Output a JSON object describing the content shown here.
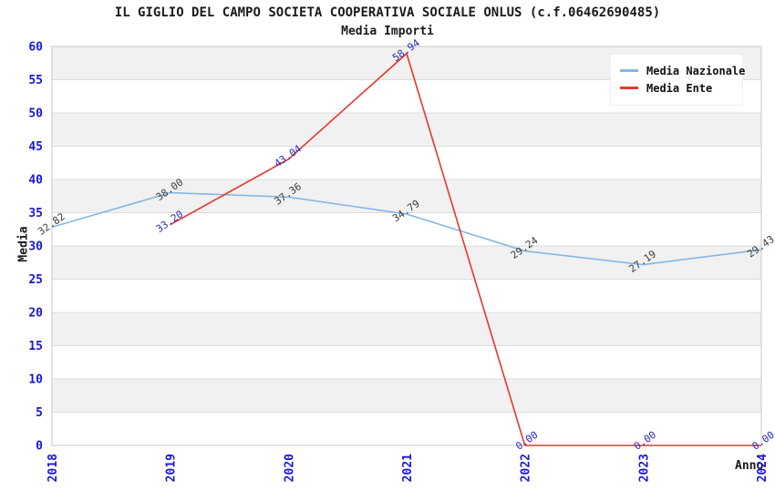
{
  "header": {
    "title": "IL GIGLIO DEL CAMPO SOCIETA COOPERATIVA SOCIALE ONLUS (c.f.06462690485)",
    "subtitle": "Media Importi"
  },
  "chart_data": {
    "type": "line",
    "title": "IL GIGLIO DEL CAMPO SOCIETA COOPERATIVA SOCIALE ONLUS (c.f.06462690485)",
    "subtitle": "Media Importi",
    "x": [
      2018,
      2019,
      2020,
      2021,
      2022,
      2023,
      2024
    ],
    "series": [
      {
        "name": "Media Nazionale",
        "color": "#85b7e5",
        "label_color": "#3d3d3d",
        "values": [
          32.82,
          38.0,
          37.36,
          34.79,
          29.24,
          27.19,
          29.43
        ]
      },
      {
        "name": "Media Ente",
        "color": "#e8362b",
        "label_color": "#2929b8",
        "values": [
          null,
          33.2,
          43.04,
          58.94,
          0.0,
          0.0,
          0.0
        ]
      }
    ],
    "xlabel": "Anno",
    "ylabel": "Media",
    "ylim": [
      0,
      60
    ],
    "ytick_step": 5,
    "grid": true,
    "legend_position": "top-right",
    "tick_color": "#1717d6",
    "band_color": "#f1f1f1",
    "grid_color": "#dcdcdc",
    "frame_color": "#c8c8c8",
    "label_decimals": 2
  }
}
